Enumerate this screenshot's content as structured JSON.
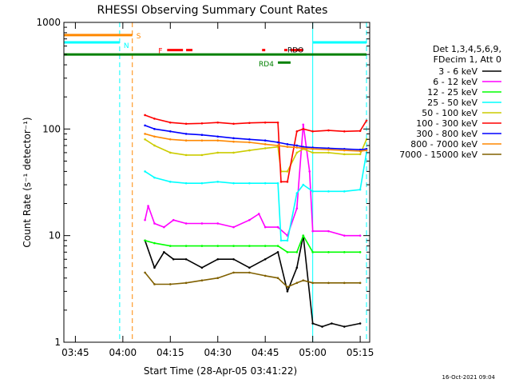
{
  "chart_data": {
    "type": "line",
    "title": "RHESSI Observing Summary Count Rates",
    "xlabel": "Start Time (28-Apr-05 03:41:22)",
    "ylabel": "Count Rate (s⁻¹ detector⁻¹)",
    "y_scale": "log",
    "ylim": [
      1,
      1000
    ],
    "xlim": [
      "03:41:22",
      "05:18:00"
    ],
    "x_ticks": [
      "03:45",
      "04:00",
      "04:15",
      "04:30",
      "04:45",
      "05:00",
      "05:15"
    ],
    "y_ticks": [
      "1",
      "10",
      "100",
      "1000"
    ],
    "grid": false,
    "legend_position": "right",
    "legend_header": [
      "Det 1,3,4,5,6,9,",
      "FDecim 1, Att 0"
    ],
    "timestamp": "16-Oct-2021 09:04",
    "series": [
      {
        "name": "3 - 6 keV",
        "color": "#000000",
        "x": [
          "04:07",
          "04:10",
          "04:13",
          "04:16",
          "04:20",
          "04:25",
          "04:30",
          "04:35",
          "04:40",
          "04:45",
          "04:49",
          "04:52",
          "04:55",
          "04:57",
          "05:00",
          "05:03",
          "05:06",
          "05:10",
          "05:15"
        ],
        "y": [
          9,
          5,
          7,
          6,
          6,
          5,
          6,
          6,
          5,
          6,
          7,
          3,
          5,
          10,
          1.5,
          1.4,
          1.5,
          1.4,
          1.5
        ]
      },
      {
        "name": "6 - 12 keV",
        "color": "#ff00ff",
        "x": [
          "04:07",
          "04:08",
          "04:10",
          "04:13",
          "04:16",
          "04:20",
          "04:25",
          "04:30",
          "04:35",
          "04:40",
          "04:43",
          "04:45",
          "04:49",
          "04:52",
          "04:55",
          "04:57",
          "04:59",
          "05:00",
          "05:05",
          "05:10",
          "05:15"
        ],
        "y": [
          14,
          19,
          13,
          12,
          14,
          13,
          13,
          13,
          12,
          14,
          16,
          12,
          12,
          10,
          18,
          110,
          40,
          11,
          11,
          10,
          10
        ]
      },
      {
        "name": "12 - 25 keV",
        "color": "#00ff00",
        "x": [
          "04:07",
          "04:10",
          "04:15",
          "04:20",
          "04:25",
          "04:30",
          "04:35",
          "04:40",
          "04:45",
          "04:49",
          "04:52",
          "04:55",
          "04:57",
          "05:00",
          "05:05",
          "05:10",
          "05:15"
        ],
        "y": [
          9,
          8.5,
          8,
          8,
          8,
          8,
          8,
          8,
          8,
          8,
          7,
          7,
          10,
          7,
          7,
          7,
          7
        ]
      },
      {
        "name": "25 - 50 keV",
        "color": "#00ffff",
        "x": [
          "04:07",
          "04:10",
          "04:15",
          "04:20",
          "04:25",
          "04:30",
          "04:35",
          "04:40",
          "04:45",
          "04:49",
          "04:50",
          "04:52",
          "04:55",
          "04:57",
          "05:00",
          "05:05",
          "05:10",
          "05:15",
          "05:17"
        ],
        "y": [
          40,
          35,
          32,
          31,
          31,
          32,
          31,
          31,
          31,
          31,
          9,
          9,
          25,
          30,
          26,
          26,
          26,
          27,
          60
        ]
      },
      {
        "name": "50 - 100 keV",
        "color": "#cccc00",
        "x": [
          "04:07",
          "04:10",
          "04:15",
          "04:20",
          "04:25",
          "04:30",
          "04:35",
          "04:40",
          "04:45",
          "04:49",
          "04:50",
          "04:52",
          "04:55",
          "04:57",
          "05:00",
          "05:05",
          "05:10",
          "05:15",
          "05:17"
        ],
        "y": [
          80,
          70,
          60,
          57,
          57,
          60,
          60,
          63,
          66,
          68,
          40,
          40,
          60,
          65,
          60,
          60,
          58,
          58,
          80
        ]
      },
      {
        "name": "100 - 300 keV",
        "color": "#ff0000",
        "x": [
          "04:07",
          "04:10",
          "04:15",
          "04:20",
          "04:25",
          "04:30",
          "04:35",
          "04:40",
          "04:45",
          "04:49",
          "04:50",
          "04:52",
          "04:55",
          "04:57",
          "05:00",
          "05:05",
          "05:10",
          "05:15",
          "05:17"
        ],
        "y": [
          135,
          125,
          115,
          112,
          113,
          115,
          112,
          114,
          115,
          115,
          32,
          32,
          95,
          100,
          95,
          97,
          95,
          96,
          120
        ]
      },
      {
        "name": "300 - 800 keV",
        "color": "#0000ff",
        "x": [
          "04:07",
          "04:10",
          "04:15",
          "04:20",
          "04:25",
          "04:30",
          "04:35",
          "04:40",
          "04:45",
          "04:49",
          "04:52",
          "04:55",
          "04:57",
          "05:00",
          "05:05",
          "05:10",
          "05:15",
          "05:17"
        ],
        "y": [
          108,
          100,
          95,
          90,
          88,
          85,
          82,
          80,
          78,
          75,
          72,
          70,
          68,
          67,
          66,
          65,
          64,
          65
        ]
      },
      {
        "name": "800 - 7000 keV",
        "color": "#ff8800",
        "x": [
          "04:07",
          "04:10",
          "04:15",
          "04:20",
          "04:25",
          "04:30",
          "04:35",
          "04:40",
          "04:45",
          "04:49",
          "04:52",
          "04:55",
          "04:57",
          "05:00",
          "05:05",
          "05:10",
          "05:15",
          "05:17"
        ],
        "y": [
          90,
          85,
          80,
          78,
          78,
          78,
          76,
          75,
          72,
          70,
          68,
          67,
          66,
          65,
          64,
          63,
          62,
          63
        ]
      },
      {
        "name": "7000 - 15000 keV",
        "color": "#806000",
        "x": [
          "04:07",
          "04:10",
          "04:15",
          "04:20",
          "04:25",
          "04:30",
          "04:35",
          "04:40",
          "04:45",
          "04:49",
          "04:52",
          "04:55",
          "04:57",
          "05:00",
          "05:05",
          "05:10",
          "05:15"
        ],
        "y": [
          4.5,
          3.5,
          3.5,
          3.6,
          3.8,
          4,
          4.5,
          4.5,
          4.2,
          4,
          3.3,
          3.6,
          3.8,
          3.6,
          3.6,
          3.6,
          3.6
        ]
      }
    ],
    "flag_bars": [
      {
        "label": "S",
        "color": "#ff8800",
        "y": 760,
        "x": [
          [
            "03:41:22",
            "04:03"
          ]
        ]
      },
      {
        "label": "N",
        "color": "#00ffff",
        "y": 650,
        "x": [
          [
            "03:41:22",
            "03:59"
          ],
          [
            "05:00",
            "05:17"
          ]
        ]
      },
      {
        "label": "F",
        "color": "#ff0000",
        "y": 550,
        "x": [
          [
            "04:14",
            "04:19"
          ],
          [
            "04:20",
            "04:22"
          ],
          [
            "04:44",
            "04:45"
          ],
          [
            "04:51",
            "04:52"
          ],
          [
            "04:53",
            "04:57"
          ]
        ]
      },
      {
        "label": "",
        "color": "#008000",
        "y": 500,
        "x": [
          [
            "03:41:22",
            "05:17"
          ]
        ]
      },
      {
        "label": "RD4",
        "color": "#008000",
        "y": 420,
        "x": [
          [
            "04:49",
            "04:53"
          ]
        ]
      },
      {
        "label": "RDO",
        "color": "#000000",
        "y": 560,
        "x": []
      }
    ],
    "vertical_markers": [
      {
        "time": "03:41:22",
        "color": "#00ffff",
        "style": "solid"
      },
      {
        "time": "03:59",
        "color": "#00ffff",
        "style": "dashed"
      },
      {
        "time": "04:03",
        "color": "#ff8800",
        "style": "dashed"
      },
      {
        "time": "05:00",
        "color": "#00ffff",
        "style": "solid"
      },
      {
        "time": "05:17",
        "color": "#00ffff",
        "style": "dashed"
      }
    ]
  }
}
